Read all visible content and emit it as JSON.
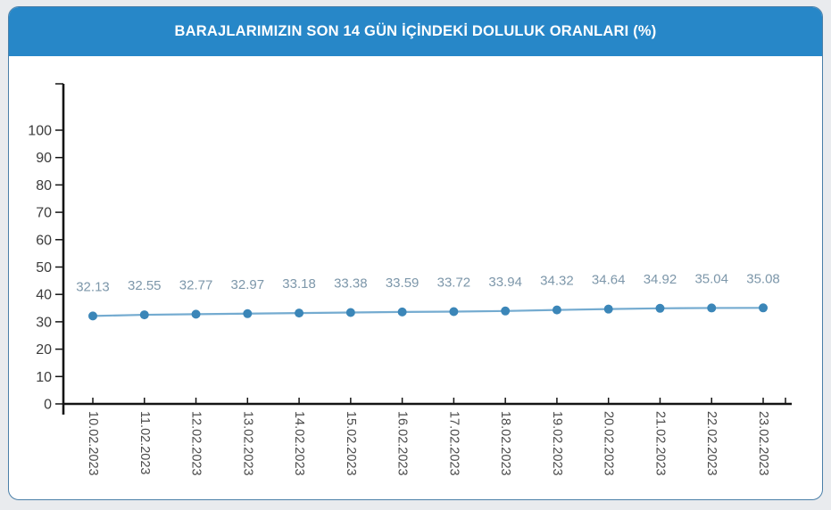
{
  "page": {
    "background_color": "#e9ebee"
  },
  "card": {
    "background_color": "#ffffff",
    "border_color": "#4a7fa8"
  },
  "header": {
    "title": "BARAJLARIMIZIN SON 14 GÜN İÇİNDEKİ DOLULUK ORANLARI (%)",
    "background_color": "#2787c8",
    "text_color": "#ffffff"
  },
  "chart_data": {
    "type": "line",
    "title": "BARAJLARIMIZIN SON 14 GÜN İÇİNDEKİ DOLULUK ORANLARI (%)",
    "categories": [
      "10.02.2023",
      "11.02.2023",
      "12.02.2023",
      "13.02.2023",
      "14.02.2023",
      "15.02.2023",
      "16.02.2023",
      "17.02.2023",
      "18.02.2023",
      "19.02.2023",
      "20.02.2023",
      "21.02.2023",
      "22.02.2023",
      "23.02.2023"
    ],
    "values": [
      32.13,
      32.55,
      32.77,
      32.97,
      33.18,
      33.38,
      33.59,
      33.72,
      33.94,
      34.32,
      34.64,
      34.92,
      35.04,
      35.08
    ],
    "data_labels_shown": true,
    "xlabel": "",
    "ylabel": "",
    "ylim": [
      0,
      100
    ],
    "y_ticks": [
      0,
      10,
      20,
      30,
      40,
      50,
      60,
      70,
      80,
      90,
      100
    ],
    "grid": false,
    "legend": "none",
    "x_label_rotation_deg": 90,
    "colors": {
      "line": "#74abd0",
      "point": "#3b86b8",
      "value_label": "#7d97aa",
      "axis": "#141414",
      "axis_tick_text": "#3c3c3c",
      "date_text": "#4a4a4a"
    }
  }
}
